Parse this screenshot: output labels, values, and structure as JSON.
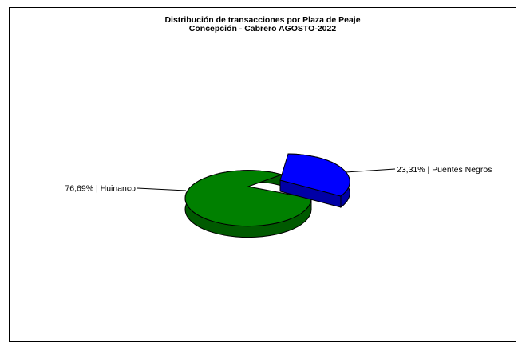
{
  "chart_data": {
    "type": "pie",
    "title": "Distribución de transacciones por Plaza de Peaje",
    "subtitle": "Concepción - Cabrero AGOSTO-2022",
    "slices": [
      {
        "name": "Huinanco",
        "value": 76.69,
        "label": "76,69% | Huinanco",
        "color": "#008000",
        "side_color": "#005a00"
      },
      {
        "name": "Puentes Negros",
        "value": 23.31,
        "label": "23,31% | Puentes Negros",
        "color": "#0000ff",
        "side_color": "#0000a6"
      }
    ],
    "exploded": "Puentes Negros",
    "legend": "none"
  }
}
